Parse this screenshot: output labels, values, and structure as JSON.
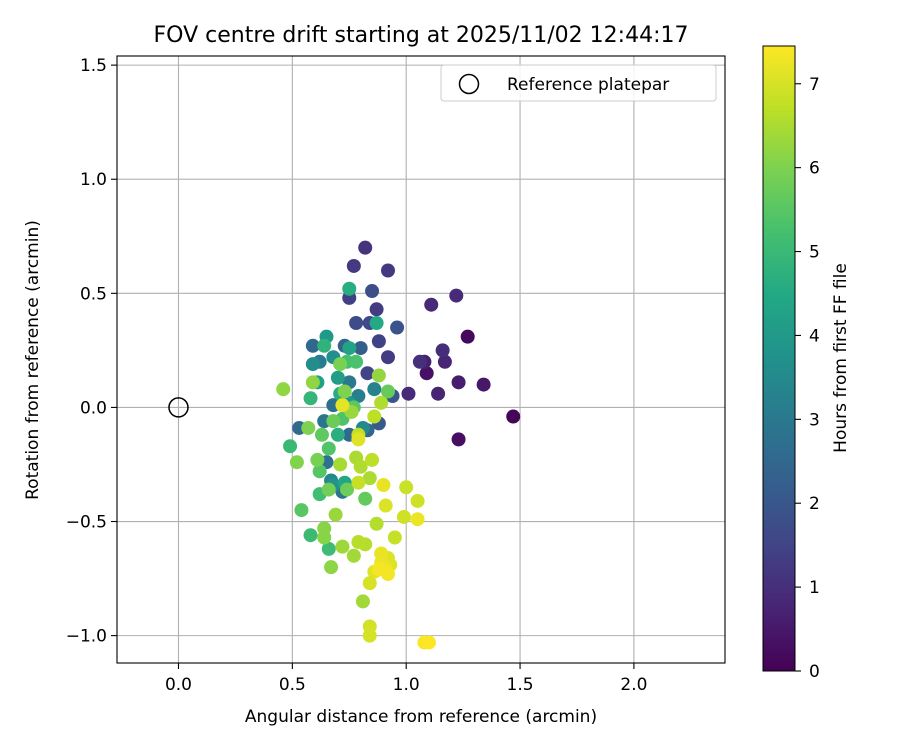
{
  "chart_data": {
    "type": "scatter",
    "title": "FOV centre drift starting at 2025/11/02 12:44:17",
    "xlabel": "Angular distance from reference (arcmin)",
    "ylabel": "Rotation from reference (arcmin)",
    "xlim": [
      -0.27,
      2.4
    ],
    "ylim": [
      -1.12,
      1.54
    ],
    "xticks": [
      0.0,
      0.5,
      1.0,
      1.5,
      2.0
    ],
    "xtick_labels": [
      "0.0",
      "0.5",
      "1.0",
      "1.5",
      "2.0"
    ],
    "yticks": [
      -1.0,
      -0.5,
      0.0,
      0.5,
      1.0,
      1.5
    ],
    "ytick_labels": [
      "−1.0",
      "−0.5",
      "0.0",
      "0.5",
      "1.0",
      "1.5"
    ],
    "grid": true,
    "legend": {
      "placement": "top-right",
      "entries": [
        "Reference platepar"
      ]
    },
    "reference_point": {
      "x": 0.0,
      "y": 0.0,
      "label": "Reference platepar"
    },
    "colorbar": {
      "label": "Hours from first FF file",
      "colormap": "viridis",
      "range": [
        0,
        7.45
      ],
      "ticks": [
        0,
        1,
        2,
        3,
        4,
        5,
        6,
        7
      ],
      "tick_labels": [
        "0",
        "1",
        "2",
        "3",
        "4",
        "5",
        "6",
        "7"
      ]
    },
    "colors": {
      "reference_marker": "#000000",
      "grid": "#b0b0b0"
    },
    "points": [
      {
        "x": 1.47,
        "y": -0.04,
        "h": 0.1
      },
      {
        "x": 1.27,
        "y": 0.31,
        "h": 0.2
      },
      {
        "x": 1.23,
        "y": -0.14,
        "h": 0.3
      },
      {
        "x": 1.09,
        "y": 0.15,
        "h": 0.35
      },
      {
        "x": 1.34,
        "y": 0.1,
        "h": 0.5
      },
      {
        "x": 1.23,
        "y": 0.11,
        "h": 0.6
      },
      {
        "x": 1.08,
        "y": 0.2,
        "h": 0.65
      },
      {
        "x": 1.14,
        "y": 0.06,
        "h": 0.75
      },
      {
        "x": 1.17,
        "y": 0.2,
        "h": 0.8
      },
      {
        "x": 1.11,
        "y": 0.45,
        "h": 0.85
      },
      {
        "x": 1.22,
        "y": 0.49,
        "h": 0.9
      },
      {
        "x": 1.16,
        "y": 0.25,
        "h": 0.95
      },
      {
        "x": 1.01,
        "y": 0.06,
        "h": 0.9
      },
      {
        "x": 1.06,
        "y": 0.2,
        "h": 1.0
      },
      {
        "x": 0.82,
        "y": 0.7,
        "h": 1.1
      },
      {
        "x": 0.92,
        "y": 0.6,
        "h": 1.2
      },
      {
        "x": 0.77,
        "y": 0.62,
        "h": 1.25
      },
      {
        "x": 0.92,
        "y": 0.22,
        "h": 1.3
      },
      {
        "x": 0.87,
        "y": 0.43,
        "h": 1.3
      },
      {
        "x": 0.75,
        "y": 0.48,
        "h": 1.4
      },
      {
        "x": 0.88,
        "y": 0.29,
        "h": 1.45
      },
      {
        "x": 0.83,
        "y": 0.15,
        "h": 1.5
      },
      {
        "x": 0.84,
        "y": 0.37,
        "h": 1.6
      },
      {
        "x": 0.78,
        "y": 0.37,
        "h": 1.7
      },
      {
        "x": 0.85,
        "y": 0.51,
        "h": 1.8
      },
      {
        "x": 0.96,
        "y": 0.35,
        "h": 1.9
      },
      {
        "x": 0.94,
        "y": 0.05,
        "h": 2.0
      },
      {
        "x": 0.88,
        "y": -0.07,
        "h": 2.1
      },
      {
        "x": 0.8,
        "y": 0.26,
        "h": 2.2
      },
      {
        "x": 0.73,
        "y": 0.27,
        "h": 2.3
      },
      {
        "x": 0.83,
        "y": -0.1,
        "h": 2.4
      },
      {
        "x": 0.59,
        "y": 0.27,
        "h": 2.5
      },
      {
        "x": 0.75,
        "y": -0.12,
        "h": 2.5
      },
      {
        "x": 0.53,
        "y": -0.09,
        "h": 2.6
      },
      {
        "x": 0.68,
        "y": 0.01,
        "h": 2.7
      },
      {
        "x": 0.65,
        "y": -0.24,
        "h": 2.8
      },
      {
        "x": 0.72,
        "y": -0.37,
        "h": 2.8
      },
      {
        "x": 0.64,
        "y": -0.06,
        "h": 2.9
      },
      {
        "x": 0.75,
        "y": 0.11,
        "h": 3.0
      },
      {
        "x": 0.62,
        "y": 0.2,
        "h": 3.1
      },
      {
        "x": 0.79,
        "y": 0.05,
        "h": 3.2
      },
      {
        "x": 0.86,
        "y": 0.08,
        "h": 3.3
      },
      {
        "x": 0.67,
        "y": -0.32,
        "h": 3.4
      },
      {
        "x": 0.81,
        "y": -0.09,
        "h": 3.5
      },
      {
        "x": 0.59,
        "y": 0.19,
        "h": 3.6
      },
      {
        "x": 0.68,
        "y": 0.22,
        "h": 3.7
      },
      {
        "x": 0.68,
        "y": -0.34,
        "h": 3.8
      },
      {
        "x": 0.75,
        "y": 0.02,
        "h": 3.9
      },
      {
        "x": 0.65,
        "y": 0.31,
        "h": 4.0
      },
      {
        "x": 0.7,
        "y": 0.13,
        "h": 4.1
      },
      {
        "x": 0.61,
        "y": 0.11,
        "h": 4.2
      },
      {
        "x": 0.75,
        "y": 0.26,
        "h": 4.3
      },
      {
        "x": 0.73,
        "y": -0.33,
        "h": 4.4
      },
      {
        "x": 0.87,
        "y": 0.37,
        "h": 4.5
      },
      {
        "x": 0.75,
        "y": 0.52,
        "h": 4.6
      },
      {
        "x": 0.71,
        "y": 0.06,
        "h": 4.6
      },
      {
        "x": 0.7,
        "y": -0.12,
        "h": 4.7
      },
      {
        "x": 0.64,
        "y": 0.27,
        "h": 4.8
      },
      {
        "x": 0.58,
        "y": 0.04,
        "h": 4.9
      },
      {
        "x": 0.49,
        "y": -0.17,
        "h": 5.0
      },
      {
        "x": 0.58,
        "y": -0.56,
        "h": 5.05
      },
      {
        "x": 0.66,
        "y": -0.62,
        "h": 5.1
      },
      {
        "x": 0.62,
        "y": -0.38,
        "h": 5.15
      },
      {
        "x": 0.74,
        "y": 0.2,
        "h": 5.2
      },
      {
        "x": 0.78,
        "y": 0.2,
        "h": 5.3
      },
      {
        "x": 0.72,
        "y": -0.05,
        "h": 5.35
      },
      {
        "x": 0.66,
        "y": -0.18,
        "h": 5.4
      },
      {
        "x": 0.62,
        "y": -0.28,
        "h": 5.45
      },
      {
        "x": 0.54,
        "y": -0.45,
        "h": 5.5
      },
      {
        "x": 0.77,
        "y": 0.0,
        "h": 5.55
      },
      {
        "x": 0.63,
        "y": -0.12,
        "h": 5.6
      },
      {
        "x": 0.82,
        "y": -0.4,
        "h": 5.65
      },
      {
        "x": 0.92,
        "y": 0.07,
        "h": 5.7
      },
      {
        "x": 0.68,
        "y": -0.06,
        "h": 5.75
      },
      {
        "x": 0.74,
        "y": -0.36,
        "h": 5.8
      },
      {
        "x": 0.66,
        "y": -0.36,
        "h": 5.85
      },
      {
        "x": 0.61,
        "y": -0.23,
        "h": 5.9
      },
      {
        "x": 0.71,
        "y": 0.19,
        "h": 5.95
      },
      {
        "x": 0.73,
        "y": 0.07,
        "h": 6.0
      },
      {
        "x": 0.57,
        "y": -0.09,
        "h": 6.0
      },
      {
        "x": 0.52,
        "y": -0.24,
        "h": 6.05
      },
      {
        "x": 0.64,
        "y": -0.53,
        "h": 6.1
      },
      {
        "x": 0.64,
        "y": -0.57,
        "h": 6.1
      },
      {
        "x": 0.67,
        "y": -0.7,
        "h": 6.15
      },
      {
        "x": 0.59,
        "y": 0.11,
        "h": 6.2
      },
      {
        "x": 0.46,
        "y": 0.08,
        "h": 6.2
      },
      {
        "x": 0.88,
        "y": 0.14,
        "h": 6.25
      },
      {
        "x": 0.76,
        "y": -0.02,
        "h": 6.3
      },
      {
        "x": 0.69,
        "y": -0.47,
        "h": 6.3
      },
      {
        "x": 0.72,
        "y": -0.61,
        "h": 6.35
      },
      {
        "x": 0.77,
        "y": -0.65,
        "h": 6.4
      },
      {
        "x": 0.81,
        "y": -0.85,
        "h": 6.4
      },
      {
        "x": 0.71,
        "y": -0.25,
        "h": 6.45
      },
      {
        "x": 0.78,
        "y": -0.22,
        "h": 6.5
      },
      {
        "x": 0.84,
        "y": -0.31,
        "h": 6.5
      },
      {
        "x": 0.89,
        "y": 0.02,
        "h": 6.55
      },
      {
        "x": 0.8,
        "y": -0.26,
        "h": 6.55
      },
      {
        "x": 0.87,
        "y": -0.51,
        "h": 6.6
      },
      {
        "x": 0.82,
        "y": -0.6,
        "h": 6.6
      },
      {
        "x": 0.79,
        "y": -0.59,
        "h": 6.65
      },
      {
        "x": 0.85,
        "y": -0.23,
        "h": 6.7
      },
      {
        "x": 0.86,
        "y": -0.04,
        "h": 6.7
      },
      {
        "x": 0.79,
        "y": -0.12,
        "h": 6.75
      },
      {
        "x": 0.79,
        "y": -0.33,
        "h": 6.8
      },
      {
        "x": 0.95,
        "y": -0.57,
        "h": 6.8
      },
      {
        "x": 1.0,
        "y": -0.35,
        "h": 6.85
      },
      {
        "x": 0.99,
        "y": -0.48,
        "h": 6.9
      },
      {
        "x": 1.05,
        "y": -0.41,
        "h": 6.9
      },
      {
        "x": 0.84,
        "y": -0.96,
        "h": 6.95
      },
      {
        "x": 0.84,
        "y": -1.0,
        "h": 7.0
      },
      {
        "x": 0.84,
        "y": -0.77,
        "h": 7.0
      },
      {
        "x": 0.91,
        "y": -0.43,
        "h": 7.05
      },
      {
        "x": 0.92,
        "y": -0.66,
        "h": 7.05
      },
      {
        "x": 0.93,
        "y": -0.69,
        "h": 7.1
      },
      {
        "x": 0.86,
        "y": -0.72,
        "h": 7.1
      },
      {
        "x": 0.79,
        "y": -0.14,
        "h": 7.1
      },
      {
        "x": 0.72,
        "y": 0.01,
        "h": 7.15
      },
      {
        "x": 0.89,
        "y": -0.64,
        "h": 7.2
      },
      {
        "x": 0.9,
        "y": -0.34,
        "h": 7.2
      },
      {
        "x": 1.05,
        "y": -0.49,
        "h": 7.25
      },
      {
        "x": 0.89,
        "y": -0.68,
        "h": 7.25
      },
      {
        "x": 0.91,
        "y": -0.71,
        "h": 7.3
      },
      {
        "x": 0.92,
        "y": -0.73,
        "h": 7.35
      },
      {
        "x": 0.88,
        "y": -0.71,
        "h": 7.35
      },
      {
        "x": 1.08,
        "y": -1.03,
        "h": 7.4
      },
      {
        "x": 1.1,
        "y": -1.03,
        "h": 7.45
      }
    ]
  }
}
